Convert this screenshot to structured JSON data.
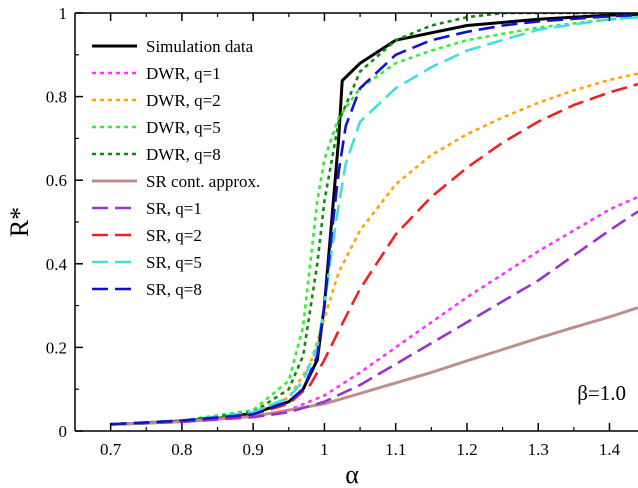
{
  "chart_data": {
    "type": "line",
    "xlabel": "α",
    "ylabel": "R*",
    "xlim": [
      0.65,
      1.44
    ],
    "ylim": [
      0,
      1
    ],
    "xticks": [
      0.7,
      0.8,
      0.9,
      1.0,
      1.1,
      1.2,
      1.3,
      1.4
    ],
    "yticks": [
      0,
      0.2,
      0.4,
      0.6,
      0.8,
      1
    ],
    "xtick_labels": [
      "0.7",
      "0.8",
      "0.9",
      "1",
      "1.1",
      "1.2",
      "1.3",
      "1.4"
    ],
    "ytick_labels": [
      "0",
      "0.2",
      "0.4",
      "0.6",
      "0.8",
      "1"
    ],
    "grid": false,
    "legend_position": "top-left",
    "annotation": "β=1.0",
    "series": [
      {
        "name": "Simulation data",
        "color": "#000000",
        "dash": "solid",
        "x": [
          0.7,
          0.75,
          0.8,
          0.85,
          0.9,
          0.95,
          0.97,
          0.99,
          1.0,
          1.01,
          1.02,
          1.025,
          1.05,
          1.1,
          1.2,
          1.3,
          1.4,
          1.44
        ],
        "y": [
          0.016,
          0.019,
          0.024,
          0.03,
          0.042,
          0.07,
          0.1,
          0.17,
          0.3,
          0.5,
          0.7,
          0.838,
          0.88,
          0.935,
          0.97,
          0.985,
          0.995,
          0.997
        ]
      },
      {
        "name": "DWR, q=1",
        "color": "#ff33ff",
        "dash": "dot",
        "x": [
          0.7,
          0.8,
          0.9,
          0.95,
          1.0,
          1.05,
          1.1,
          1.15,
          1.2,
          1.25,
          1.3,
          1.35,
          1.4,
          1.44
        ],
        "y": [
          0.016,
          0.022,
          0.035,
          0.05,
          0.085,
          0.14,
          0.2,
          0.26,
          0.32,
          0.375,
          0.43,
          0.48,
          0.53,
          0.56
        ]
      },
      {
        "name": "DWR, q=2",
        "color": "#ffa500",
        "dash": "dot",
        "x": [
          0.7,
          0.8,
          0.9,
          0.95,
          0.98,
          1.0,
          1.02,
          1.05,
          1.1,
          1.15,
          1.2,
          1.25,
          1.3,
          1.35,
          1.4,
          1.44
        ],
        "y": [
          0.016,
          0.024,
          0.045,
          0.08,
          0.16,
          0.27,
          0.38,
          0.48,
          0.59,
          0.66,
          0.71,
          0.75,
          0.785,
          0.815,
          0.84,
          0.855
        ]
      },
      {
        "name": "DWR, q=5",
        "color": "#33ee33",
        "dash": "dot",
        "x": [
          0.7,
          0.8,
          0.9,
          0.95,
          0.97,
          0.99,
          1.0,
          1.02,
          1.05,
          1.1,
          1.15,
          1.2,
          1.3,
          1.4,
          1.44
        ],
        "y": [
          0.016,
          0.025,
          0.05,
          0.12,
          0.25,
          0.55,
          0.65,
          0.75,
          0.82,
          0.88,
          0.91,
          0.935,
          0.965,
          0.985,
          0.99
        ]
      },
      {
        "name": "DWR, q=8",
        "color": "#118811",
        "dash": "dot",
        "x": [
          0.7,
          0.8,
          0.9,
          0.95,
          0.97,
          0.99,
          1.0,
          1.02,
          1.05,
          1.1,
          1.15,
          1.2,
          1.25,
          1.3,
          1.4,
          1.44
        ],
        "y": [
          0.016,
          0.025,
          0.045,
          0.1,
          0.18,
          0.4,
          0.55,
          0.74,
          0.86,
          0.935,
          0.97,
          0.99,
          1.0,
          1.0,
          1.0,
          1.0
        ]
      },
      {
        "name": "SR cont. approx.",
        "color": "#bc8f8f",
        "dash": "solid",
        "x": [
          0.7,
          0.8,
          0.9,
          1.0,
          1.05,
          1.1,
          1.15,
          1.2,
          1.25,
          1.3,
          1.35,
          1.4,
          1.44
        ],
        "y": [
          0.016,
          0.022,
          0.035,
          0.065,
          0.09,
          0.115,
          0.14,
          0.168,
          0.195,
          0.222,
          0.248,
          0.273,
          0.295
        ]
      },
      {
        "name": "SR, q=1",
        "color": "#9933cc",
        "dash": "dash",
        "x": [
          0.7,
          0.8,
          0.9,
          0.95,
          1.0,
          1.05,
          1.1,
          1.15,
          1.2,
          1.25,
          1.3,
          1.35,
          1.4,
          1.44
        ],
        "y": [
          0.016,
          0.022,
          0.033,
          0.045,
          0.07,
          0.11,
          0.16,
          0.21,
          0.26,
          0.31,
          0.36,
          0.42,
          0.48,
          0.525
        ]
      },
      {
        "name": "SR, q=2",
        "color": "#ee2222",
        "dash": "dash",
        "x": [
          0.7,
          0.8,
          0.9,
          0.95,
          0.98,
          1.0,
          1.02,
          1.05,
          1.1,
          1.15,
          1.2,
          1.25,
          1.3,
          1.35,
          1.4,
          1.44
        ],
        "y": [
          0.016,
          0.024,
          0.04,
          0.065,
          0.11,
          0.17,
          0.24,
          0.34,
          0.47,
          0.56,
          0.63,
          0.69,
          0.74,
          0.78,
          0.81,
          0.83
        ]
      },
      {
        "name": "SR, q=5",
        "color": "#44dddd",
        "dash": "dash",
        "x": [
          0.7,
          0.8,
          0.9,
          0.95,
          0.97,
          0.99,
          1.0,
          1.01,
          1.02,
          1.03,
          1.05,
          1.1,
          1.15,
          1.2,
          1.3,
          1.4,
          1.44
        ],
        "y": [
          0.016,
          0.025,
          0.045,
          0.08,
          0.12,
          0.2,
          0.3,
          0.43,
          0.54,
          0.64,
          0.74,
          0.82,
          0.87,
          0.91,
          0.96,
          0.985,
          0.99
        ]
      },
      {
        "name": "SR, q=8",
        "color": "#1111cc",
        "dash": "dash",
        "x": [
          0.7,
          0.8,
          0.9,
          0.95,
          0.97,
          0.99,
          1.0,
          1.01,
          1.02,
          1.03,
          1.05,
          1.1,
          1.15,
          1.2,
          1.25,
          1.3,
          1.4,
          1.44
        ],
        "y": [
          0.016,
          0.025,
          0.04,
          0.07,
          0.1,
          0.18,
          0.3,
          0.47,
          0.62,
          0.73,
          0.82,
          0.9,
          0.935,
          0.955,
          0.97,
          0.98,
          0.992,
          0.995
        ]
      }
    ]
  }
}
